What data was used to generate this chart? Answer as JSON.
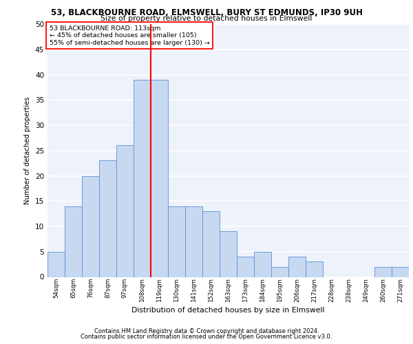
{
  "title1": "53, BLACKBOURNE ROAD, ELMSWELL, BURY ST EDMUNDS, IP30 9UH",
  "title2": "Size of property relative to detached houses in Elmswell",
  "xlabel": "Distribution of detached houses by size in Elmswell",
  "ylabel": "Number of detached properties",
  "bar_labels": [
    "54sqm",
    "65sqm",
    "76sqm",
    "87sqm",
    "97sqm",
    "108sqm",
    "119sqm",
    "130sqm",
    "141sqm",
    "152sqm",
    "163sqm",
    "173sqm",
    "184sqm",
    "195sqm",
    "206sqm",
    "217sqm",
    "228sqm",
    "238sqm",
    "249sqm",
    "260sqm",
    "271sqm"
  ],
  "bar_values": [
    5,
    14,
    20,
    23,
    26,
    39,
    39,
    14,
    14,
    13,
    9,
    4,
    5,
    2,
    4,
    3,
    0,
    0,
    0,
    2,
    2
  ],
  "bar_color": "#c6d9f1",
  "bar_edge_color": "#5b8fd4",
  "vline_color": "red",
  "vline_pos": 5.5,
  "annotation_text": "53 BLACKBOURNE ROAD: 113sqm\n← 45% of detached houses are smaller (105)\n55% of semi-detached houses are larger (130) →",
  "annotation_box_color": "white",
  "annotation_box_edge": "red",
  "ylim": [
    0,
    50
  ],
  "yticks": [
    0,
    5,
    10,
    15,
    20,
    25,
    30,
    35,
    40,
    45,
    50
  ],
  "footer1": "Contains HM Land Registry data © Crown copyright and database right 2024.",
  "footer2": "Contains public sector information licensed under the Open Government Licence v3.0.",
  "bg_color": "#eef2fb",
  "grid_color": "white"
}
